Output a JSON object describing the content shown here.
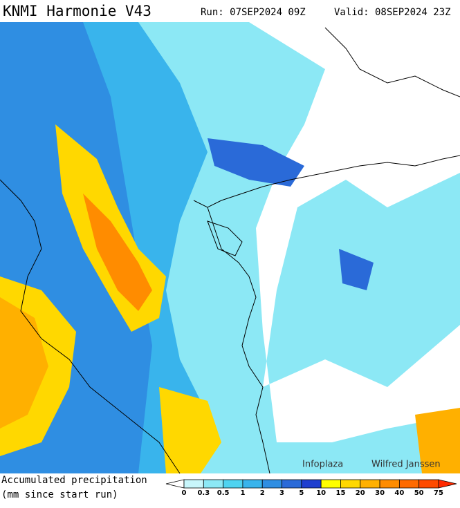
{
  "header": {
    "title": "KNMI Harmonie V43",
    "run": "Run: 07SEP2024 09Z",
    "valid": "Valid: 08SEP2024 23Z"
  },
  "legend": {
    "title": "Accumulated precipitation",
    "subtitle": "(mm since start run)",
    "levels": [
      0,
      0.3,
      0.5,
      1,
      2,
      3,
      5,
      10,
      15,
      20,
      30,
      40,
      50,
      75
    ],
    "colors": [
      "#c8f6fb",
      "#8ce8f5",
      "#4fd3f0",
      "#39b4ec",
      "#2f8ee2",
      "#2a6ad8",
      "#1f3fcf",
      "#ffff00",
      "#ffd800",
      "#ffb000",
      "#ff8c00",
      "#ff6a00",
      "#ff4a00"
    ]
  },
  "credits": {
    "left": "Infoplaza",
    "right": "Wilfred Janssen"
  }
}
